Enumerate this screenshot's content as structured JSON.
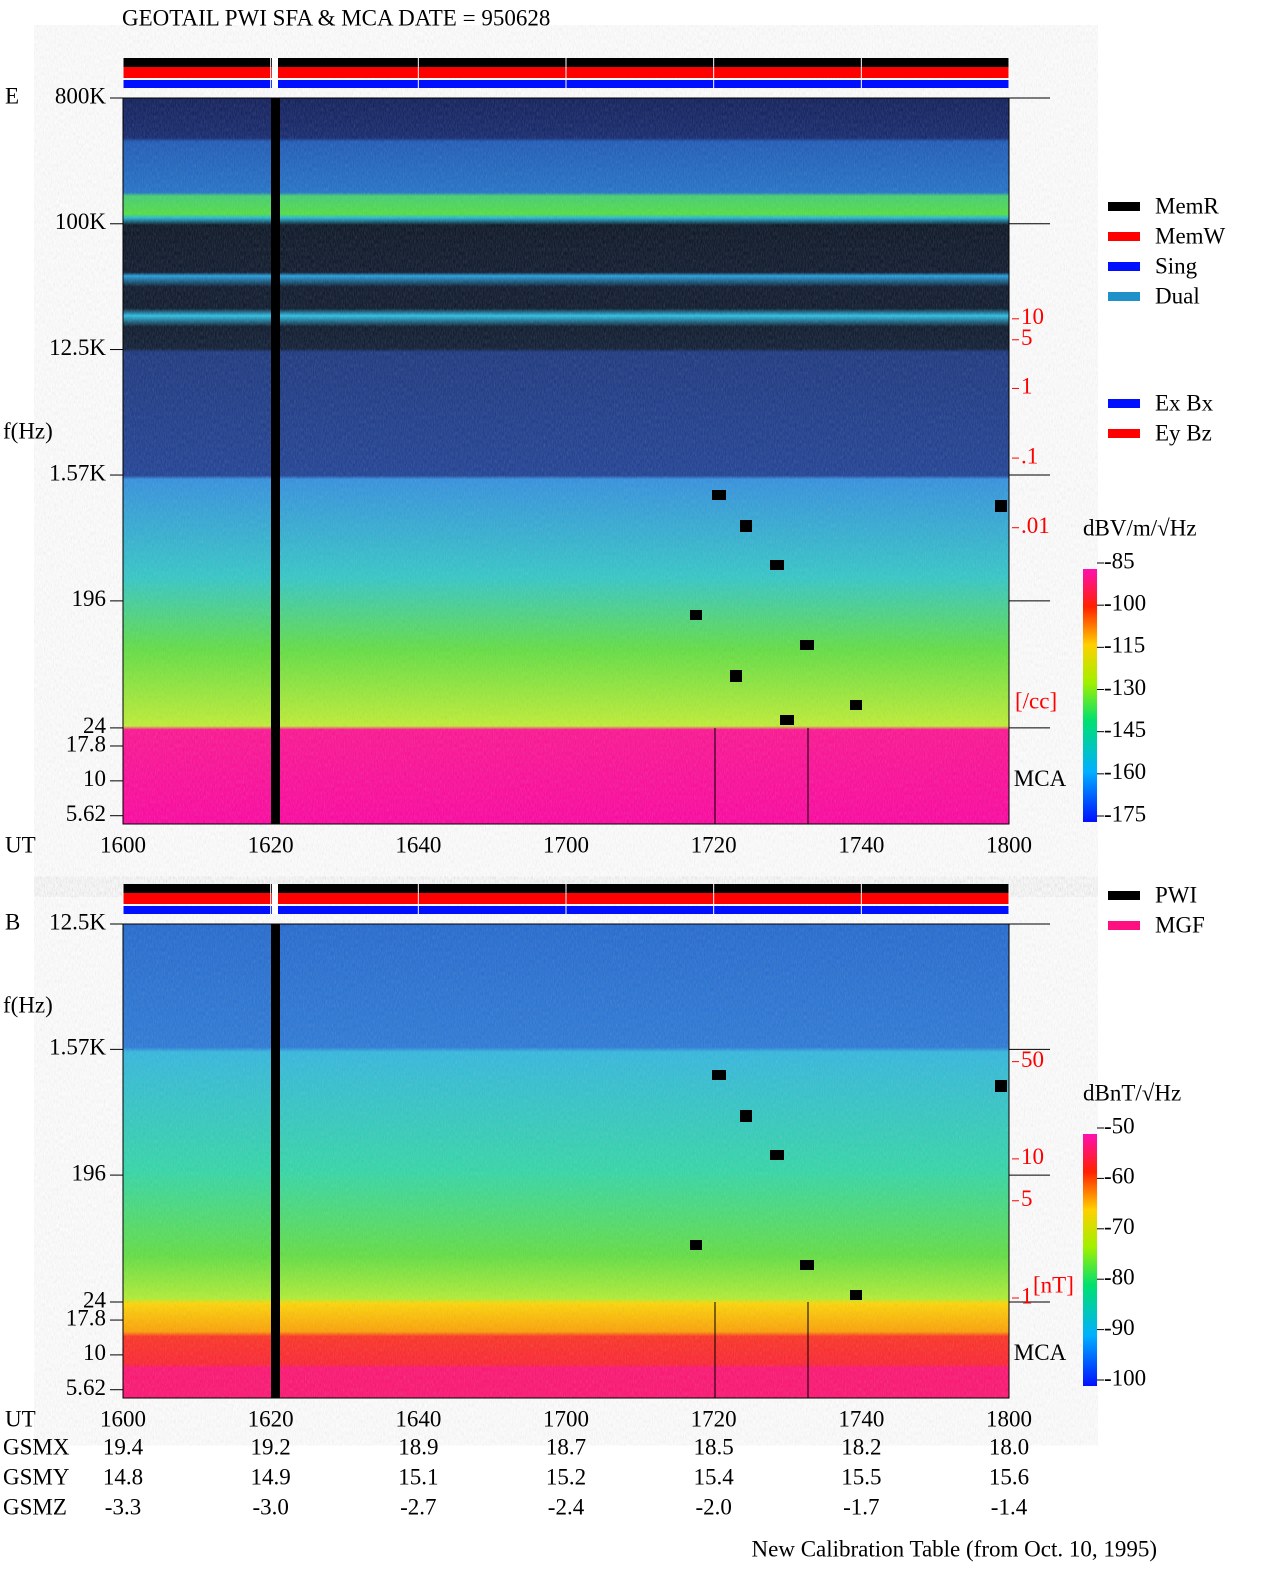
{
  "chart_data": [
    {
      "type": "spectrogram",
      "title": "GEOTAIL  PWI SFA & MCA   DATE = 950628",
      "panel_label": "E",
      "ylabel": "f(Hz)",
      "xlabel": "UT",
      "band_label": "MCA",
      "yscale": "log",
      "ylim": [
        4.9,
        800000
      ],
      "yticks": [
        {
          "value": 800000,
          "label": "800K"
        },
        {
          "value": 100000,
          "label": "100K"
        },
        {
          "value": 12500,
          "label": "12.5K"
        },
        {
          "value": 1570,
          "label": "1.57K"
        },
        196,
        24,
        17.8,
        10,
        5.62
      ],
      "xlim": [
        960,
        1080
      ],
      "xticks": [
        {
          "value": 960,
          "label": "1600"
        },
        {
          "value": 980,
          "label": "1620"
        },
        {
          "value": 1000,
          "label": "1640"
        },
        {
          "value": 1020,
          "label": "1700"
        },
        {
          "value": 1040,
          "label": "1720"
        },
        {
          "value": 1060,
          "label": "1740"
        },
        {
          "value": 1080,
          "label": "1800"
        }
      ],
      "y2scale": "log",
      "y2lim": [
        5.56e-07,
        14827
      ],
      "y2ticks": [
        10,
        5,
        1,
        {
          "value": 0.1,
          "label": ".1"
        },
        {
          "value": 0.01,
          "label": ".01"
        }
      ],
      "y2label": "[/cc]",
      "colorbar": {
        "label": "dBV/m/√Hz",
        "lim": [
          -175,
          -85
        ],
        "ticks": [
          -85,
          -100,
          -115,
          -130,
          -145,
          -160,
          -175
        ]
      },
      "legends": [
        [
          {
            "name": "MemR",
            "color": "#000000"
          },
          {
            "name": "MemW",
            "color": "#ff0000"
          },
          {
            "name": "Sing",
            "color": "#0010ff"
          },
          {
            "name": "Dual",
            "color": "#2090c8"
          }
        ],
        [
          {
            "name": "Ex Bx",
            "color": "#0010ff"
          },
          {
            "name": "Ey Bz",
            "color": "#ff0000"
          }
        ]
      ]
    },
    {
      "type": "spectrogram",
      "panel_label": "B",
      "ylabel": "f(Hz)",
      "xlabel": "UT",
      "band_label": "MCA",
      "yscale": "log",
      "ylim": [
        4.9,
        12500
      ],
      "yticks": [
        {
          "value": 12500,
          "label": "12.5K"
        },
        {
          "value": 1570,
          "label": "1.57K"
        },
        196,
        24,
        17.8,
        10,
        5.62
      ],
      "xlim": [
        960,
        1080
      ],
      "xticks": [
        {
          "value": 960,
          "label": "1600"
        },
        {
          "value": 980,
          "label": "1620"
        },
        {
          "value": 1000,
          "label": "1640"
        },
        {
          "value": 1020,
          "label": "1700"
        },
        {
          "value": 1040,
          "label": "1720"
        },
        {
          "value": 1060,
          "label": "1740"
        },
        {
          "value": 1080,
          "label": "1800"
        }
      ],
      "y2scale": "log",
      "y2lim": [
        0.191,
        488
      ],
      "y2ticks": [
        50,
        10,
        5,
        1
      ],
      "y2label": "[nT]",
      "colorbar": {
        "label": "dBnT/√Hz",
        "lim": [
          -100,
          -50
        ],
        "ticks": [
          -50,
          -60,
          -70,
          -80,
          -90,
          -100
        ]
      },
      "legends": [
        [
          {
            "name": "PWI",
            "color": "#000000"
          },
          {
            "name": "MGF",
            "color": "#ff1080"
          }
        ]
      ],
      "ephemeris": [
        {
          "name": "GSMX",
          "values": [
            19.4,
            19.2,
            18.9,
            18.7,
            18.5,
            18.2,
            18
          ],
          "value_labels": [
            "19.4",
            "19.2",
            "18.9",
            "18.7",
            "18.5",
            "18.2",
            "18.0"
          ]
        },
        {
          "name": "GSMY",
          "values": [
            14.8,
            14.9,
            15.1,
            15.2,
            15.4,
            15.5,
            15.6
          ]
        },
        {
          "name": "GSMZ",
          "values": [
            -3.3,
            -3,
            -2.7,
            -2.4,
            -2,
            -1.7,
            -1.4
          ],
          "value_labels": [
            "-3.3",
            "-3.0",
            "-2.7",
            "-2.4",
            "-2.0",
            "-1.7",
            "-1.4"
          ]
        }
      ],
      "note": "New Calibration Table (from Oct. 10, 1995)"
    }
  ]
}
